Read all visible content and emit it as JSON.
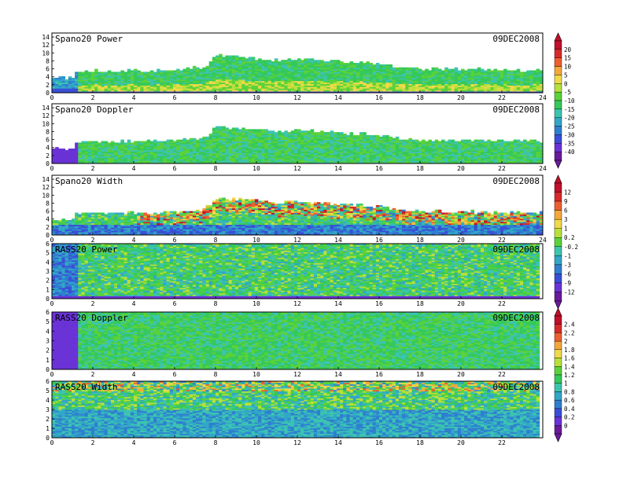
{
  "colorbars": [
    {
      "id": "cb1",
      "labels": [
        "20",
        "15",
        "10",
        "5",
        "0",
        "-5",
        "-10",
        "-15",
        "-20",
        "-25",
        "-30",
        "-35",
        "-40"
      ]
    },
    {
      "id": "cb2",
      "labels": [
        "12",
        "9",
        "6",
        "3",
        "1",
        "0.2",
        "-0.2",
        "-1",
        "-3",
        "-6",
        "-9",
        "-12"
      ]
    },
    {
      "id": "cb3",
      "labels": [
        "2.4",
        "2.2",
        "2",
        "1.8",
        "1.6",
        "1.4",
        "1.2",
        "1",
        "0.8",
        "0.6",
        "0.4",
        "0.2",
        "0"
      ]
    }
  ],
  "colors": {
    "scale": [
      "#6a1b9a",
      "#6a33d6",
      "#3a4fd6",
      "#2f7fd0",
      "#32a6c7",
      "#3cc4b0",
      "#35c95a",
      "#5bd23a",
      "#b8e03a",
      "#f0d94a",
      "#f4a83a",
      "#ec6030",
      "#d62a2a",
      "#c0102a"
    ]
  },
  "chart_data": [
    {
      "type": "heatmap",
      "title": "Spano20 Power",
      "date": "09DEC2008",
      "x_ticks": [
        "0",
        "2",
        "4",
        "6",
        "8",
        "10",
        "12",
        "14",
        "16",
        "18",
        "20",
        "22",
        "24"
      ],
      "y_ticks": [
        "0",
        "2",
        "4",
        "6",
        "8",
        "10",
        "12",
        "14"
      ],
      "xlim": [
        0,
        24
      ],
      "ylim": [
        0,
        15
      ],
      "colorbar": "cb1",
      "envelope": [
        [
          0,
          4.5
        ],
        [
          1.2,
          4.5
        ],
        [
          1.2,
          6
        ],
        [
          5,
          6.3
        ],
        [
          7.5,
          7
        ],
        [
          8,
          10
        ],
        [
          9,
          10
        ],
        [
          10,
          9
        ],
        [
          11,
          8.7
        ],
        [
          12,
          9.3
        ],
        [
          13,
          8.8
        ],
        [
          14,
          8.5
        ],
        [
          15,
          8.2
        ],
        [
          16,
          7.8
        ],
        [
          17,
          7
        ],
        [
          18,
          6.5
        ],
        [
          20,
          6.5
        ],
        [
          22,
          6.3
        ],
        [
          24,
          6.3
        ]
      ]
    },
    {
      "type": "heatmap",
      "title": "Spano20 Doppler",
      "date": "09DEC2008",
      "x_ticks": [
        "0",
        "2",
        "4",
        "6",
        "8",
        "10",
        "12",
        "14",
        "16",
        "18",
        "20",
        "22",
        "24"
      ],
      "y_ticks": [
        "0",
        "2",
        "4",
        "6",
        "8",
        "10",
        "12",
        "14"
      ],
      "xlim": [
        0,
        24
      ],
      "ylim": [
        0,
        15
      ],
      "colorbar": "cb1",
      "envelope": [
        [
          0,
          4.5
        ],
        [
          1.2,
          4.5
        ],
        [
          1.2,
          6
        ],
        [
          5,
          6.3
        ],
        [
          7.5,
          7
        ],
        [
          8,
          9.8
        ],
        [
          9,
          9.7
        ],
        [
          10,
          9.2
        ],
        [
          11,
          8.7
        ],
        [
          12,
          9
        ],
        [
          13,
          8.6
        ],
        [
          14,
          8.4
        ],
        [
          15,
          8.1
        ],
        [
          16,
          7.6
        ],
        [
          17,
          7
        ],
        [
          18,
          6.4
        ],
        [
          20,
          6.5
        ],
        [
          22,
          6.2
        ],
        [
          24,
          6.2
        ]
      ]
    },
    {
      "type": "heatmap",
      "title": "Spano20 Width",
      "date": "09DEC2008",
      "x_ticks": [
        "0",
        "2",
        "4",
        "6",
        "8",
        "10",
        "12",
        "14",
        "16",
        "18",
        "20",
        "22",
        "24"
      ],
      "y_ticks": [
        "0",
        "2",
        "4",
        "6",
        "8",
        "10",
        "12",
        "14"
      ],
      "xlim": [
        0,
        24
      ],
      "ylim": [
        0,
        15
      ],
      "colorbar": "cb2",
      "envelope": [
        [
          0,
          4.5
        ],
        [
          1.2,
          4.5
        ],
        [
          1.2,
          6
        ],
        [
          5,
          6.3
        ],
        [
          7.5,
          7
        ],
        [
          8,
          9.8
        ],
        [
          9,
          9.7
        ],
        [
          10,
          9.2
        ],
        [
          11,
          8.7
        ],
        [
          12,
          9
        ],
        [
          13,
          8.6
        ],
        [
          14,
          8.4
        ],
        [
          15,
          8.1
        ],
        [
          16,
          7.6
        ],
        [
          17,
          7
        ],
        [
          18,
          6.4
        ],
        [
          20,
          6.5
        ],
        [
          22,
          6.2
        ],
        [
          24,
          6.2
        ]
      ]
    },
    {
      "type": "heatmap",
      "title": "RASS20 Power",
      "date": "09DEC2008",
      "x_ticks": [
        "0",
        "2",
        "4",
        "6",
        "8",
        "10",
        "12",
        "14",
        "16",
        "18",
        "20",
        "22"
      ],
      "y_ticks": [
        "0",
        "1",
        "2",
        "3",
        "4",
        "5",
        "6"
      ],
      "xlim": [
        0,
        24
      ],
      "ylim": [
        0,
        6
      ],
      "colorbar": "cb2",
      "envelope": [
        [
          0,
          6
        ],
        [
          24,
          6
        ]
      ]
    },
    {
      "type": "heatmap",
      "title": "RASS20 Doppler",
      "date": "09DEC2008",
      "x_ticks": [
        "0",
        "2",
        "4",
        "6",
        "8",
        "10",
        "12",
        "14",
        "16",
        "18",
        "20",
        "22"
      ],
      "y_ticks": [
        "0",
        "1",
        "2",
        "3",
        "4",
        "5",
        "6"
      ],
      "xlim": [
        0,
        24
      ],
      "ylim": [
        0,
        6
      ],
      "colorbar": "cb3",
      "envelope": [
        [
          0,
          6
        ],
        [
          24,
          6
        ]
      ]
    },
    {
      "type": "heatmap",
      "title": "RASS20 Width",
      "date": "09DEC2008",
      "x_ticks": [
        "0",
        "2",
        "4",
        "6",
        "8",
        "10",
        "12",
        "14",
        "16",
        "18",
        "20",
        "22"
      ],
      "y_ticks": [
        "0",
        "1",
        "2",
        "3",
        "4",
        "5",
        "6"
      ],
      "xlim": [
        0,
        24
      ],
      "ylim": [
        0,
        6
      ],
      "colorbar": "cb3",
      "envelope": [
        [
          0,
          6
        ],
        [
          24,
          6
        ]
      ]
    }
  ]
}
